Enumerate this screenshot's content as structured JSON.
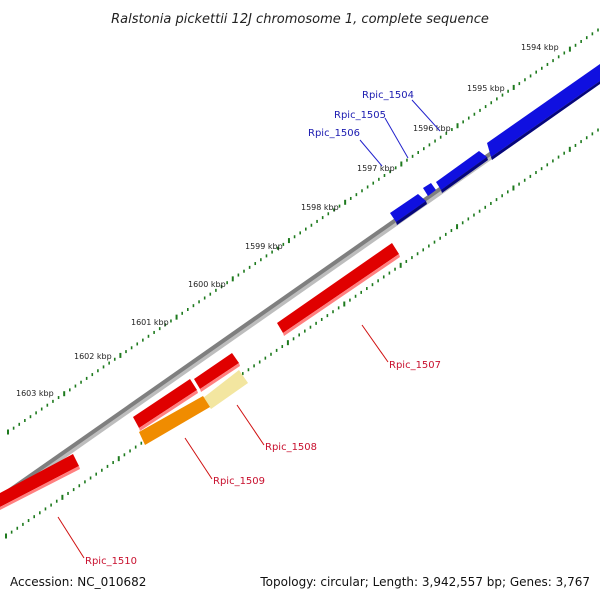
{
  "title": "Ralstonia pickettii 12J chromosome 1, complete sequence",
  "footer": {
    "accession": "Accession: NC_010682",
    "summary": "Topology: circular; Length: 3,942,557 bp; Genes: 3,767"
  },
  "scale_labels": [
    "1594 kbp",
    "1595 kbp",
    "1596 kbp",
    "1597 kbp",
    "1598 kbp",
    "1599 kbp",
    "1600 kbp",
    "1601 kbp",
    "1602 kbp",
    "1603 kbp"
  ],
  "genes": [
    {
      "id": "Rpic_1504",
      "strand": "forward",
      "color": "#1010e0"
    },
    {
      "id": "Rpic_1505",
      "strand": "forward",
      "color": "#1010e0"
    },
    {
      "id": "Rpic_1506",
      "strand": "forward",
      "color": "#1010e0"
    },
    {
      "id": "Rpic_1507",
      "strand": "reverse",
      "color": "#e00000"
    },
    {
      "id": "Rpic_1508",
      "strand": "reverse",
      "color": "#e00000"
    },
    {
      "id": "Rpic_1509",
      "strand": "reverse",
      "color": "#e00000"
    },
    {
      "id": "Rpic_1510",
      "strand": "reverse",
      "color": "#e00000"
    }
  ],
  "colors": {
    "backbone": "#7f7f7f",
    "ticks": "#1e7a1e",
    "forward_gene": "#1010e0",
    "reverse_gene": "#e00000",
    "orf_orange": "#f08c00",
    "orf_yellow": "#f3e6a0"
  }
}
